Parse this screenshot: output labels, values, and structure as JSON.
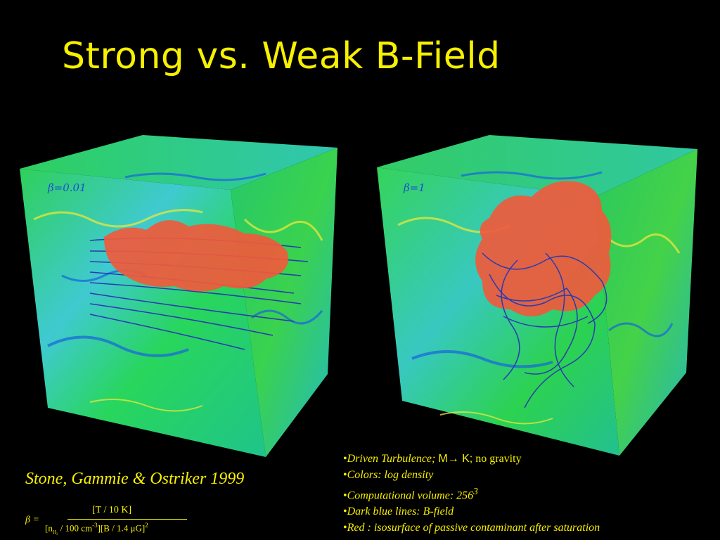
{
  "slide": {
    "title": "Strong vs. Weak B-Field",
    "left_panel": {
      "beta_label": "β=0.01"
    },
    "right_panel": {
      "beta_label": "β=1"
    },
    "credit": "Stone, Gammie & Ostriker 1999",
    "bullets": [
      {
        "prefix": "•",
        "text": "Driven Turbulence; ",
        "symbol": "M→ K;",
        "suffix": " no gravity"
      },
      {
        "prefix": "•",
        "text": "Colors: log density"
      },
      {
        "prefix": "•",
        "text": "Computational volume: 256",
        "sup": "3"
      },
      {
        "prefix": "•",
        "text": "Dark blue lines: B-field"
      },
      {
        "prefix": "•",
        "text": "Red : isosurface of passive contaminant after saturation"
      }
    ],
    "formula": {
      "lhs": "β =",
      "numerator": "[T / 10 K]",
      "den_part1": "[n",
      "den_sub": "H₂",
      "den_part2": " / 100 cm",
      "den_sup1": "-3",
      "den_part3": "][B / 1.4 μG]",
      "den_sup2": "2"
    },
    "colors": {
      "title": "#f7f000",
      "background": "#000000",
      "density_low": "#1a6ad8",
      "density_mid": "#22d64a",
      "density_high": "#e8e83a",
      "isosurface": "#f05a3c",
      "field_lines": "#2a3cb0"
    }
  }
}
